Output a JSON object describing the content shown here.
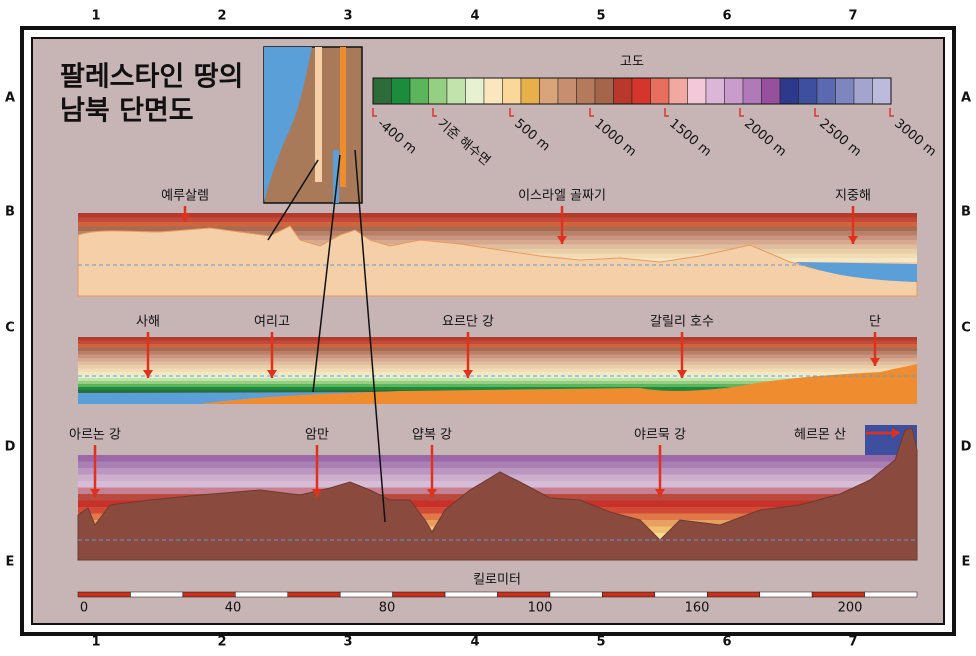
{
  "grid": {
    "columns": [
      "1",
      "2",
      "3",
      "4",
      "5",
      "6",
      "7"
    ],
    "rows": [
      "A",
      "B",
      "C",
      "D",
      "E"
    ]
  },
  "title": [
    "팔레스타인 땅의",
    "남북 단면도"
  ],
  "legend": {
    "title": "고도",
    "labels": [
      "-400 m",
      "기준 해수면",
      "500 m",
      "1000 m",
      "1500 m",
      "2000 m",
      "2500 m",
      "3000 m"
    ]
  },
  "sections": [
    {
      "labels": [
        "예루살렘",
        "이스라엘 골짜기",
        "지중해"
      ]
    },
    {
      "labels": [
        "사해",
        "여리고",
        "요르단 강",
        "갈릴리 호수",
        "단"
      ]
    },
    {
      "labels": [
        "아르논 강",
        "암만",
        "얍복 강",
        "야르묵 강",
        "헤르몬 산"
      ]
    }
  ],
  "scale": {
    "title": "킬로미터",
    "labels": [
      "0",
      "40",
      "80",
      "100",
      "160",
      "200"
    ]
  }
}
